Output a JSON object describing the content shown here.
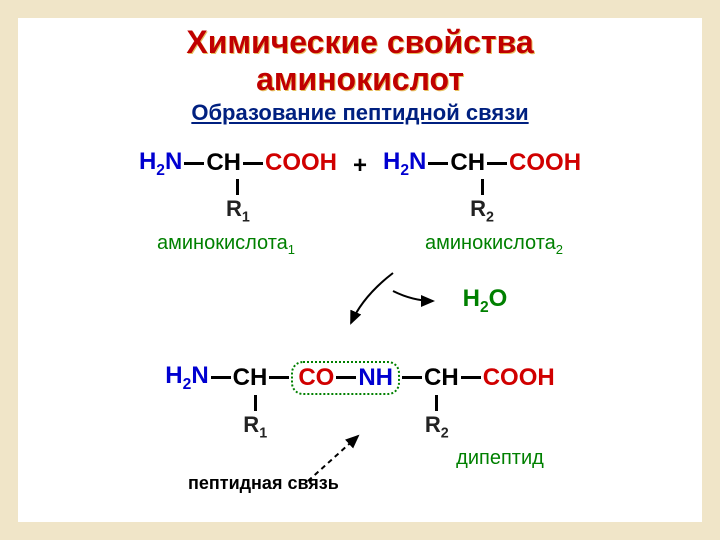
{
  "title_line1": "Химические свойства",
  "title_line2": "аминокислот",
  "subtitle": "Образование пептидной связи",
  "colors": {
    "title": "#c00000",
    "subtitle": "#002080",
    "amine": "#0000d0",
    "carboxyl": "#d00000",
    "green": "#008000",
    "black": "#000000",
    "frame": "#f0e5c8",
    "bg": "#ffffff"
  },
  "aa1": {
    "amine": "H₂N",
    "ch": "CH",
    "carboxyl": "COOH",
    "r": "R₁",
    "label": "аминокислота₁"
  },
  "aa2": {
    "amine": "H₂N",
    "ch": "CH",
    "carboxyl": "COOH",
    "r": "R₂",
    "label": "аминокислота₂"
  },
  "plus": "+",
  "water": "H₂O",
  "dipeptide": {
    "amine": "H₂N",
    "ch1": "CH",
    "co": "CO",
    "nh": "NH",
    "ch2": "CH",
    "carboxyl": "COOH",
    "r1": "R₁",
    "r2": "R₂",
    "label": "дипептид"
  },
  "peptide_bond_label": "пептидная связь"
}
